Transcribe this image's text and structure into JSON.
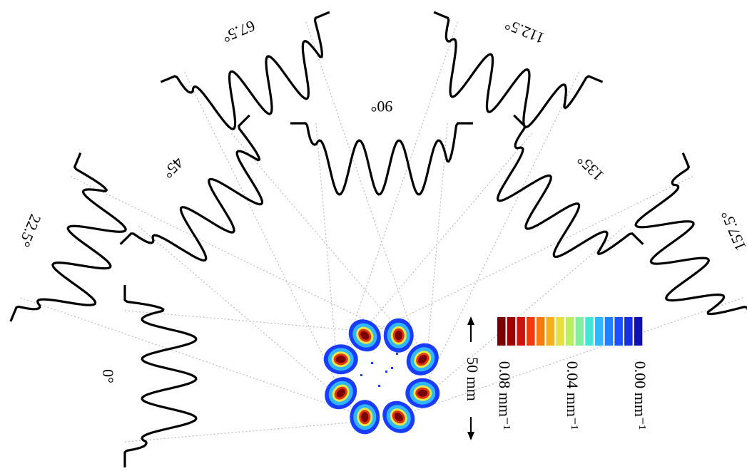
{
  "projections": [
    {
      "label": "0°"
    },
    {
      "label": "22.5°"
    },
    {
      "label": "45°"
    },
    {
      "label": "67.5°"
    },
    {
      "label": "90°"
    },
    {
      "label": "112.5°"
    },
    {
      "label": "135°"
    },
    {
      "label": "157.5°"
    }
  ],
  "scale_bar": {
    "label": "50 mm"
  },
  "colorbar": {
    "labels": [
      "0.08 mm⁻¹",
      "0.04 mm⁻¹",
      "0.00 mm⁻¹"
    ]
  }
}
